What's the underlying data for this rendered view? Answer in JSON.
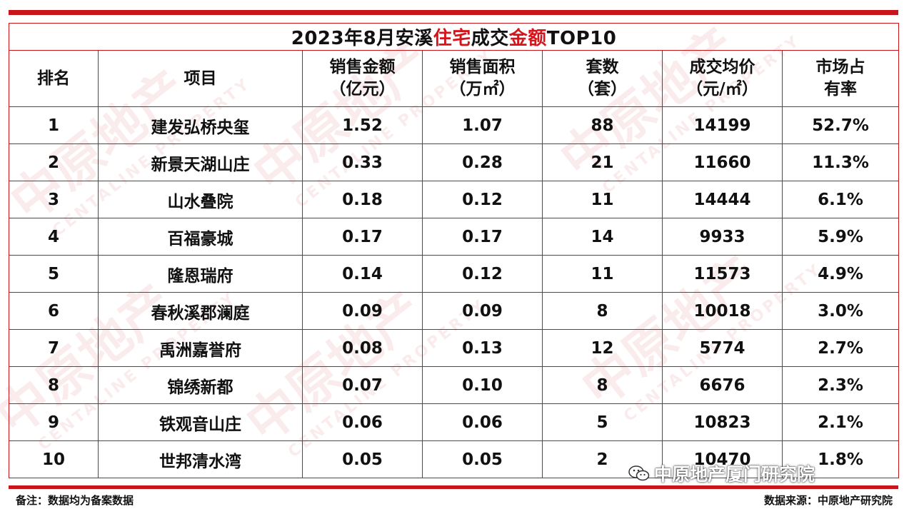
{
  "title": {
    "prefix": "2023年8月安溪",
    "highlight1": "住宅",
    "middle": "成交",
    "highlight2": "金额",
    "suffix": "TOP10"
  },
  "headers": [
    {
      "line1": "排名",
      "line2": ""
    },
    {
      "line1": "项目",
      "line2": ""
    },
    {
      "line1": "销售金额",
      "line2": "（亿元）"
    },
    {
      "line1": "销售面积",
      "line2": "（万㎡）"
    },
    {
      "line1": "套数",
      "line2": "（套）"
    },
    {
      "line1": "成交均价",
      "line2": "（元/㎡）"
    },
    {
      "line1": "市场占",
      "line2": "有率"
    }
  ],
  "rows": [
    [
      "1",
      "建发弘桥央玺",
      "1.52",
      "1.07",
      "88",
      "14199",
      "52.7%"
    ],
    [
      "2",
      "新景天湖山庄",
      "0.33",
      "0.28",
      "21",
      "11660",
      "11.3%"
    ],
    [
      "3",
      "山水叠院",
      "0.18",
      "0.12",
      "11",
      "14444",
      "6.1%"
    ],
    [
      "4",
      "百福豪城",
      "0.17",
      "0.17",
      "14",
      "9933",
      "5.9%"
    ],
    [
      "5",
      "隆恩瑞府",
      "0.14",
      "0.12",
      "11",
      "11573",
      "4.9%"
    ],
    [
      "6",
      "春秋溪郡澜庭",
      "0.09",
      "0.09",
      "8",
      "10018",
      "3.0%"
    ],
    [
      "7",
      "禹洲嘉誉府",
      "0.08",
      "0.13",
      "12",
      "5774",
      "2.7%"
    ],
    [
      "8",
      "锦绣新都",
      "0.07",
      "0.10",
      "8",
      "6676",
      "2.3%"
    ],
    [
      "9",
      "铁观音山庄",
      "0.06",
      "0.06",
      "5",
      "10823",
      "2.1%"
    ],
    [
      "10",
      "世邦清水湾",
      "0.05",
      "0.05",
      "2",
      "10470",
      "1.8%"
    ]
  ],
  "footer": {
    "note": "备注：数据均为备案数据",
    "source": "数据来源：中原地产研究院"
  },
  "watermark": {
    "cn": "中原地产",
    "en": "CENTALINE PROPERTY",
    "wechat": "中原地产厦门研究院",
    "icon": "wechat-icon"
  },
  "colors": {
    "accent": "#c8151b",
    "highlight": "#d4151b"
  }
}
